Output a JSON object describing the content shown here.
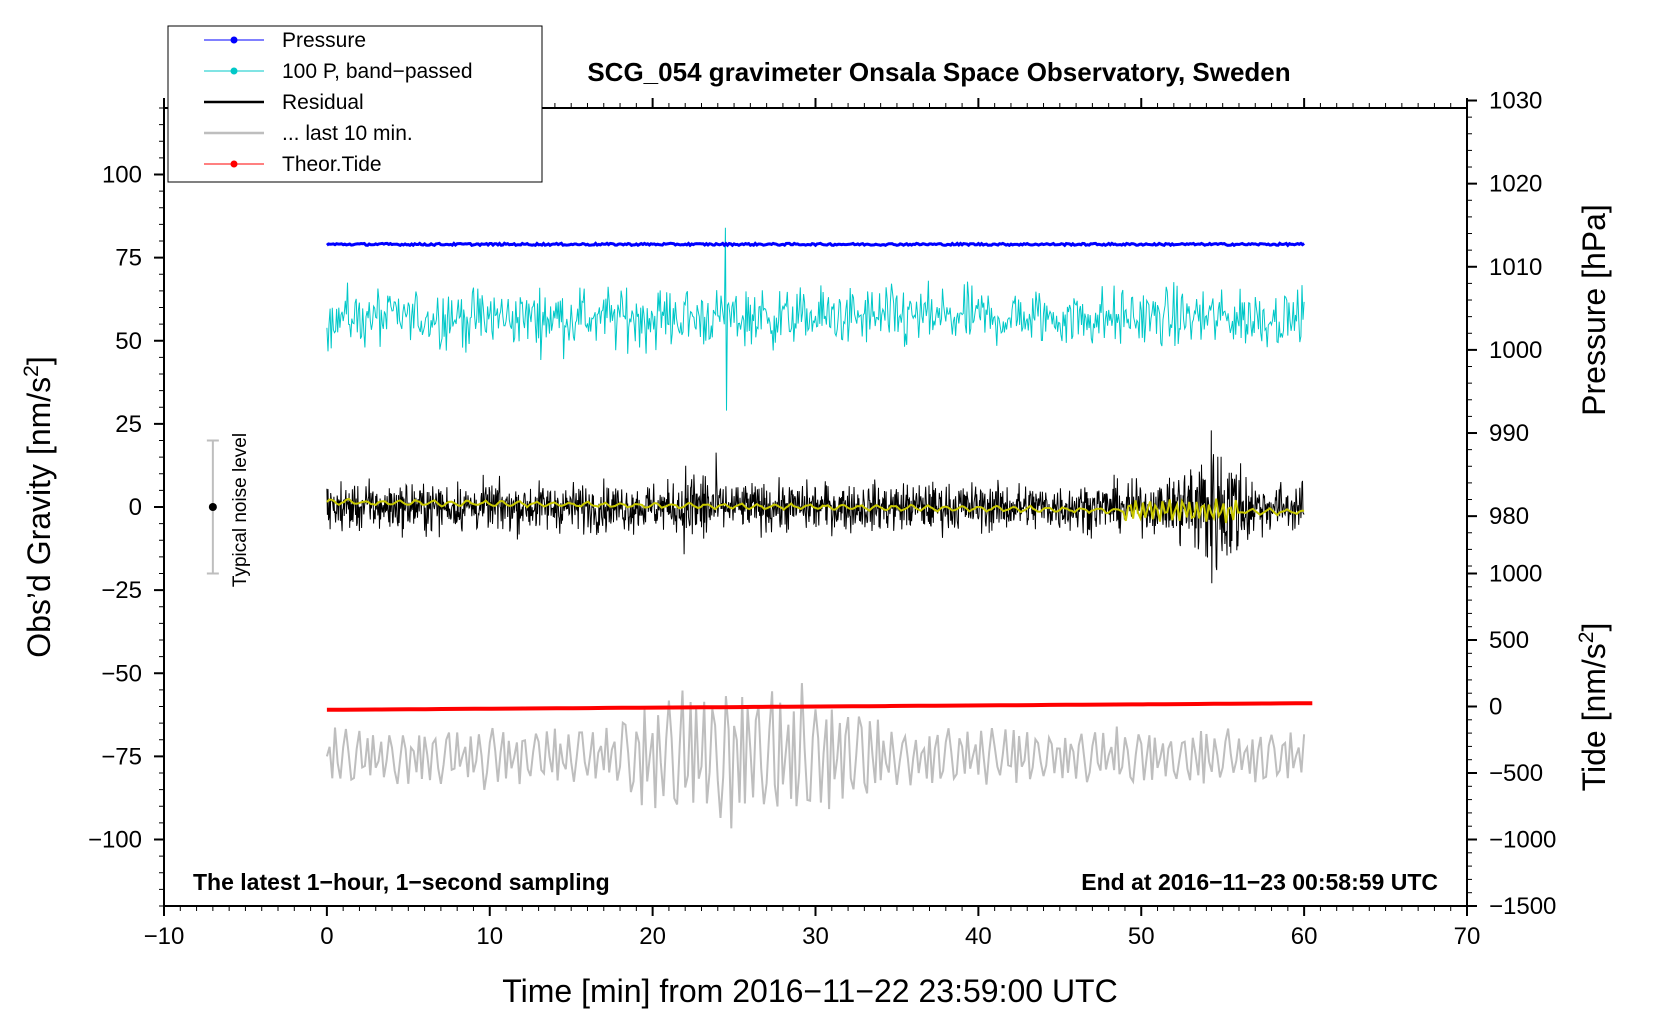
{
  "chart_data": {
    "type": "line",
    "title": "SCG_054 gravimeter Onsala Space Observatory, Sweden",
    "xlabel": "Time [min] from 2016−11−22 23:59:00 UTC",
    "ylabel_left": "Obs’d Gravity [nm/s",
    "ylabel_left_sup": "2",
    "ylabel_left_end": "]",
    "ylabel_right_pressure": "Pressure [hPa]",
    "ylabel_right_tide": "Tide [nm/s",
    "ylabel_right_tide_sup": "2",
    "ylabel_right_tide_end": "]",
    "xlim": [
      -10,
      70
    ],
    "ylim_left": [
      -120,
      120
    ],
    "x_ticks": [
      "−10",
      "0",
      "10",
      "20",
      "30",
      "40",
      "50",
      "60",
      "70"
    ],
    "y_left_ticks": [
      "100",
      "75",
      "50",
      "25",
      "0",
      "−25",
      "−50",
      "−75",
      "−100"
    ],
    "y_pressure_ticks": [
      "1030",
      "1020",
      "1010",
      "1000",
      "990",
      "980"
    ],
    "y_tide_ticks": [
      "1000",
      "500",
      "0",
      "−500",
      "−1000",
      "−1500"
    ],
    "annotation_left": "The latest 1−hour, 1−second sampling",
    "annotation_right": "End at 2016−11−23 00:58:59 UTC",
    "noise_label": "Typical noise level",
    "noise_bar": {
      "x": -7,
      "center": 0,
      "half_range": 20
    },
    "legend": [
      {
        "label": "Pressure",
        "color": "#0000ff",
        "marker": true
      },
      {
        "label": "100 P, band−passed",
        "color": "#00c8c8",
        "marker": true
      },
      {
        "label": "Residual",
        "color": "#000000",
        "marker": false
      },
      {
        "label": "... last 10 min.",
        "color": "#bebebe",
        "marker": false
      },
      {
        "label": "Theor.Tide",
        "color": "#ff0000",
        "marker": true
      }
    ],
    "series": [
      {
        "name": "Pressure",
        "color": "#0000ff",
        "x_range": [
          0,
          60
        ],
        "level_nm_s2": 79
      },
      {
        "name": "100 P, band−passed",
        "color": "#00c8c8",
        "x_range": [
          0,
          60
        ],
        "center_nm_s2": 57,
        "amplitude_nm_s2": 8,
        "spike": {
          "x": 24.5,
          "max": 84,
          "min": 29
        }
      },
      {
        "name": "Residual",
        "color": "#000000",
        "x_range": [
          0,
          60
        ],
        "center_nm_s2": 0,
        "amplitude_nm_s2": 6,
        "burst": {
          "x": 54.5,
          "max": 24,
          "min": -28
        }
      },
      {
        "name": "smoothed residual",
        "color": "#c8c800",
        "x_range": [
          0,
          60
        ],
        "center_nm_s2": 0
      },
      {
        "name": "... last 10 min.",
        "color": "#bebebe",
        "x_range": [
          0,
          60
        ],
        "center_nm_s2": -75,
        "min": -102,
        "max": -49
      },
      {
        "name": "Theor.Tide",
        "color": "#ff0000",
        "x_range": [
          0,
          60.5
        ],
        "start_nm_s2": -61,
        "end_nm_s2": -59
      }
    ]
  }
}
